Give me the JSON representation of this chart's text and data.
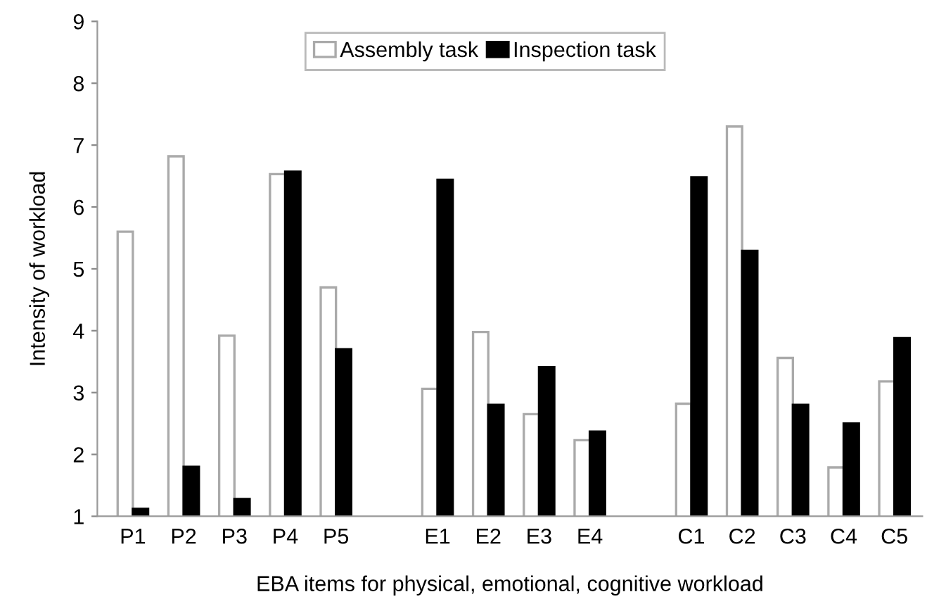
{
  "chart_data": {
    "type": "bar",
    "xlabel": "EBA items for physical, emotional, cognitive workload",
    "ylabel": "Intensity of workload",
    "categories": [
      "P1",
      "P2",
      "P3",
      "P4",
      "P5",
      null,
      "E1",
      "E2",
      "E3",
      "E4",
      null,
      "C1",
      "C2",
      "C3",
      "C4",
      "C5"
    ],
    "series": [
      {
        "name": "Assembly task",
        "color": "#ffffff",
        "values": [
          5.6,
          6.82,
          3.92,
          6.53,
          4.7,
          null,
          3.06,
          3.98,
          2.65,
          2.23,
          null,
          2.82,
          7.3,
          3.56,
          1.79,
          3.18
        ]
      },
      {
        "name": "Inspection task",
        "color": "#000000",
        "values": [
          1.12,
          1.8,
          1.28,
          6.57,
          3.7,
          null,
          6.44,
          2.8,
          3.41,
          2.37,
          null,
          6.48,
          5.29,
          2.8,
          2.5,
          3.88
        ]
      }
    ],
    "ylim": [
      1,
      9
    ],
    "yticks": [
      1,
      2,
      3,
      4,
      5,
      6,
      7,
      8,
      9
    ],
    "grid": false,
    "legend": "top"
  }
}
